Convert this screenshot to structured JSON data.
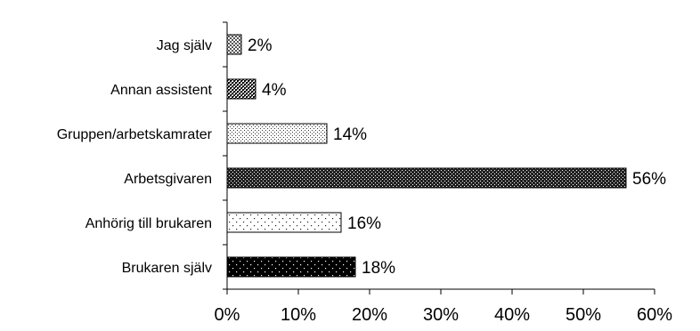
{
  "chart_data": {
    "type": "bar",
    "orientation": "horizontal",
    "categories": [
      "Jag själv",
      "Annan assistent",
      "Gruppen/arbetskamrater",
      "Arbetsgivaren",
      "Anhörig till brukaren",
      "Brukaren själv"
    ],
    "values": [
      2,
      4,
      14,
      56,
      16,
      18
    ],
    "value_labels": [
      "2%",
      "4%",
      "14%",
      "56%",
      "16%",
      "18%"
    ],
    "x_ticks": [
      "0%",
      "10%",
      "20%",
      "30%",
      "40%",
      "50%",
      "60%"
    ],
    "xlim": [
      0,
      60
    ],
    "title": "",
    "xlabel": "",
    "ylabel": "",
    "grid": false,
    "legend": "none",
    "bar_patterns": [
      "fine-checker",
      "dense-checker",
      "fine-dots",
      "dense-checker-dark",
      "sparse-dots",
      "black-with-white-dots"
    ]
  }
}
